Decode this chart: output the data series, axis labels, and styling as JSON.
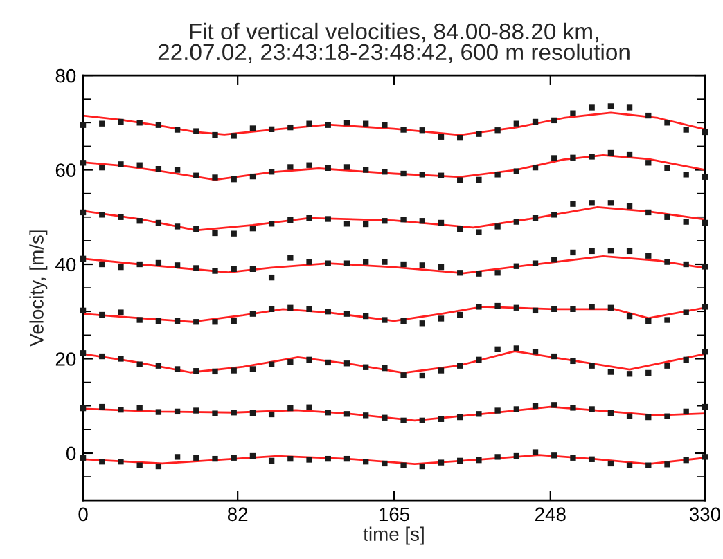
{
  "chart_data": {
    "type": "scatter",
    "title": "Fit of vertical velocities, 84.00-88.20 km,\n22.07.02, 23:43:18-23:48:42, 600 m resolution",
    "xlabel": "time [s]",
    "ylabel": "Velocity, [m/s]",
    "x": [
      0,
      10,
      20,
      30,
      40,
      50,
      60,
      70,
      80,
      90,
      100,
      110,
      120,
      130,
      140,
      150,
      160,
      170,
      180,
      190,
      200,
      210,
      220,
      230,
      240,
      250,
      260,
      270,
      280,
      290,
      300,
      310,
      320,
      330
    ],
    "xlim": [
      0,
      330
    ],
    "xticks": [
      0,
      82,
      165,
      248,
      330
    ],
    "ylim": [
      -10,
      80
    ],
    "yticks": [
      {
        "value": -10,
        "label": null
      },
      {
        "value": -5,
        "label": null
      },
      0,
      {
        "value": 5,
        "label": null
      },
      {
        "value": 10,
        "label": null
      },
      {
        "value": 15,
        "label": null
      },
      20,
      {
        "value": 25,
        "label": null
      },
      {
        "value": 30,
        "label": null
      },
      {
        "value": 35,
        "label": null
      },
      40,
      {
        "value": 45,
        "label": null
      },
      {
        "value": 50,
        "label": null
      },
      {
        "value": 55,
        "label": null
      },
      60,
      {
        "value": 65,
        "label": null
      },
      {
        "value": 70,
        "label": null
      },
      {
        "value": 75,
        "label": null
      },
      80
    ],
    "grid": false,
    "legend": false,
    "series": [
      {
        "marker": "square",
        "color": "#1a1a1a",
        "values": [
          69.5,
          69.8,
          70.2,
          70,
          69.5,
          68.5,
          68.2,
          67.4,
          67.2,
          68.8,
          68.6,
          69,
          69.8,
          69.5,
          70,
          69.8,
          69.5,
          68.5,
          68.4,
          67,
          66.8,
          67.6,
          68.4,
          69.8,
          70.2,
          70.5,
          72,
          73.2,
          73.5,
          73.2,
          71.5,
          70,
          68.5,
          68
        ]
      },
      {
        "marker": "square",
        "color": "#1a1a1a",
        "values": [
          61.5,
          60.5,
          61.2,
          61,
          60.2,
          60,
          58.8,
          58.4,
          58,
          58.6,
          59.6,
          60.6,
          61,
          60.4,
          60.6,
          60,
          59.6,
          59.2,
          59,
          58.8,
          57.8,
          57.9,
          59,
          59.7,
          60.5,
          62.5,
          62.6,
          62.8,
          63.6,
          63.3,
          61.5,
          60.4,
          59,
          58.5
        ]
      },
      {
        "marker": "square",
        "color": "#1a1a1a",
        "values": [
          51,
          50.5,
          50,
          49.2,
          48.8,
          48,
          47.5,
          46.6,
          46.5,
          47.6,
          48.6,
          49.4,
          49.8,
          49.6,
          48.6,
          48.5,
          49.2,
          49.5,
          49.2,
          48.8,
          47.5,
          46.8,
          48,
          49,
          49.8,
          50.5,
          52.8,
          53,
          53,
          52.3,
          51,
          50,
          49,
          48.8
        ]
      },
      {
        "marker": "square",
        "color": "#1a1a1a",
        "values": [
          41.2,
          40,
          39.4,
          40,
          40.3,
          39.8,
          39.2,
          38.6,
          39,
          39,
          37.2,
          41.4,
          40.5,
          40.2,
          40.2,
          40.5,
          40.5,
          40,
          39.8,
          39.4,
          38.2,
          38,
          38.2,
          39.6,
          40.2,
          41,
          42.5,
          42.8,
          42.9,
          42.8,
          41.8,
          40.5,
          40,
          39.5
        ]
      },
      {
        "marker": "square",
        "color": "#1a1a1a",
        "values": [
          30.2,
          29.3,
          29.8,
          28.2,
          28,
          28,
          27.8,
          27.8,
          28,
          29.5,
          30.5,
          30.8,
          30.5,
          30,
          29.5,
          29,
          28.2,
          28,
          27.5,
          28.5,
          29.3,
          31,
          31.2,
          30.8,
          30.2,
          30.5,
          30.5,
          31,
          30.8,
          29,
          28,
          28.2,
          29.8,
          31
        ]
      },
      {
        "marker": "square",
        "color": "#1a1a1a",
        "values": [
          21.2,
          20.5,
          20,
          18.8,
          18.5,
          17.8,
          17.4,
          17.3,
          17.5,
          17.8,
          18.8,
          19.3,
          19.8,
          19.2,
          19,
          18.2,
          18,
          16.5,
          16.4,
          17.5,
          18.5,
          19.8,
          22,
          22.2,
          21.5,
          20.5,
          19.5,
          18.5,
          17.2,
          16.8,
          17,
          18.5,
          19.8,
          21.5
        ]
      },
      {
        "marker": "square",
        "color": "#1a1a1a",
        "values": [
          9.5,
          9.8,
          9.2,
          9.6,
          8.7,
          8.8,
          9,
          8.4,
          8.6,
          8.5,
          8.2,
          9.5,
          9.7,
          8.6,
          8.3,
          8,
          7.5,
          6.9,
          6.9,
          7.2,
          7.6,
          8.3,
          9,
          9.3,
          10,
          10.2,
          9.6,
          9.3,
          8.5,
          7.8,
          7.6,
          7.8,
          8.8,
          9.8
        ]
      },
      {
        "marker": "square",
        "color": "#1a1a1a",
        "values": [
          -1,
          -1.8,
          -1.8,
          -2.6,
          -2.8,
          -0.8,
          -1,
          -1.2,
          -1,
          -0.6,
          -1.6,
          -1.2,
          -1.4,
          -1.2,
          -1.2,
          -1.8,
          -2.2,
          -2.6,
          -2.8,
          -2,
          -1.6,
          -1.5,
          -0.8,
          -0.6,
          0.2,
          -0.5,
          -1,
          -1.3,
          -2.2,
          -2.6,
          -2.6,
          -2.4,
          -1.5,
          -0.8
        ]
      },
      {
        "type": "line",
        "marker": "none",
        "color": "#ff2020",
        "x": [
          0,
          20,
          40,
          60,
          75,
          100,
          130,
          165,
          200,
          230,
          255,
          280,
          305,
          330
        ],
        "values": [
          71.5,
          70.6,
          69.4,
          68.0,
          67.5,
          68.5,
          69.6,
          68.7,
          67.4,
          69.0,
          71.0,
          72.1,
          71.0,
          68.6
        ]
      },
      {
        "type": "line",
        "marker": "none",
        "color": "#ff2020",
        "x": [
          0,
          20,
          40,
          70,
          100,
          125,
          165,
          200,
          230,
          255,
          276,
          300,
          330
        ],
        "values": [
          61.6,
          60.9,
          59.8,
          57.9,
          59.5,
          60.3,
          59.2,
          58.5,
          60.0,
          62.2,
          63.1,
          62.3,
          60.0
        ]
      },
      {
        "type": "line",
        "marker": "none",
        "color": "#ff2020",
        "x": [
          0,
          30,
          60,
          90,
          120,
          165,
          207,
          240,
          273,
          300,
          330
        ],
        "values": [
          51.3,
          49.6,
          47.2,
          48.3,
          49.8,
          49.3,
          47.8,
          49.8,
          52.1,
          51.2,
          49.5
        ]
      },
      {
        "type": "line",
        "marker": "none",
        "color": "#ff2020",
        "x": [
          0,
          30,
          77,
          100,
          130,
          165,
          202,
          240,
          276,
          305,
          330
        ],
        "values": [
          41.2,
          40.0,
          38.3,
          39.3,
          40.2,
          39.4,
          38.1,
          40.0,
          41.7,
          40.8,
          39.2
        ]
      },
      {
        "type": "line",
        "marker": "none",
        "color": "#ff2020",
        "x": [
          0,
          30,
          58,
          85,
          106,
          130,
          165,
          190,
          212,
          250,
          282,
          300,
          330
        ],
        "values": [
          29.5,
          28.6,
          27.8,
          29.2,
          30.5,
          29.8,
          28.0,
          29.5,
          31.0,
          30.5,
          30.5,
          28.6,
          30.8
        ]
      },
      {
        "type": "line",
        "marker": "none",
        "color": "#ff2020",
        "x": [
          0,
          25,
          57,
          85,
          114,
          140,
          170,
          200,
          229,
          260,
          290,
          330
        ],
        "values": [
          21.0,
          19.5,
          17.1,
          18.3,
          20.3,
          19.0,
          17.0,
          18.6,
          21.6,
          19.6,
          17.7,
          21.0
        ]
      },
      {
        "type": "line",
        "marker": "none",
        "color": "#ff2020",
        "x": [
          0,
          40,
          80,
          113,
          140,
          176,
          210,
          248,
          280,
          304,
          330
        ],
        "values": [
          9.4,
          8.8,
          8.6,
          9.1,
          8.4,
          6.9,
          8.2,
          9.8,
          8.8,
          8.0,
          8.4
        ]
      },
      {
        "type": "line",
        "marker": "none",
        "color": "#ff2020",
        "x": [
          0,
          42,
          103,
          140,
          176,
          210,
          242,
          270,
          300,
          330
        ],
        "values": [
          -1.3,
          -2.2,
          -0.6,
          -1.2,
          -2.3,
          -1.4,
          -0.4,
          -1.2,
          -2.3,
          -1.0
        ]
      }
    ]
  }
}
